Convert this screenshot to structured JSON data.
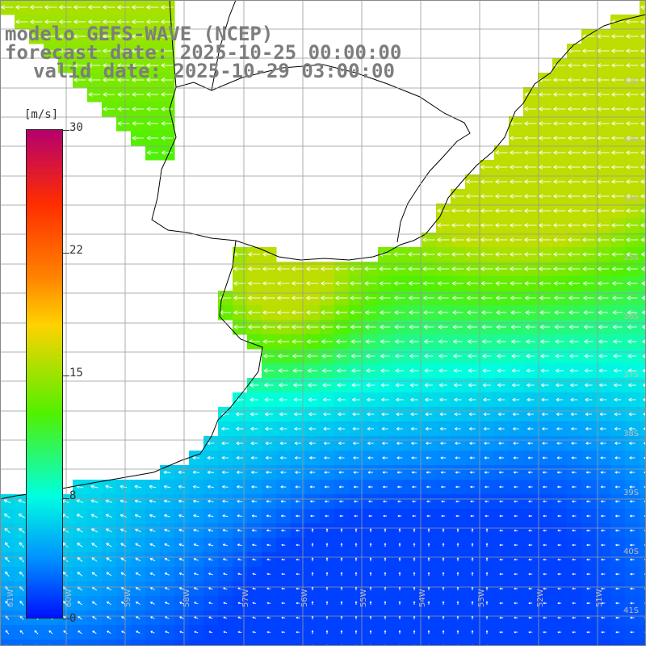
{
  "header": {
    "model": "modelo GEFS-WAVE (NCEP)",
    "forecast": "forecast date: 2025-10-25 00:00:00",
    "valid": "valid date: 2025-10-29 03:00:00"
  },
  "colorbar": {
    "unit": "[m/s]",
    "ticks": [
      "30",
      "22",
      "15",
      "8",
      "0"
    ],
    "tick_values": [
      30,
      22,
      15,
      8,
      0
    ],
    "colors": [
      "#0010ff",
      "#0090ff",
      "#00ffe0",
      "#52f000",
      "#ffd200",
      "#ff8200",
      "#ff2c00",
      "#b4006e"
    ]
  },
  "grid": {
    "lat_labels": [
      "32S",
      "33S",
      "34S",
      "35S",
      "36S",
      "37S",
      "38S",
      "39S",
      "40S",
      "41S"
    ],
    "lon_labels": [
      "61W",
      "60W",
      "59W",
      "58W",
      "57W",
      "56W",
      "55W",
      "54W",
      "53W",
      "52W",
      "51W"
    ]
  },
  "map_data": {
    "quantity": "wind speed",
    "extent": {
      "lon_min": -61.5,
      "lon_max": -50.5,
      "lat_min": -41.5,
      "lat_max": -31.5
    },
    "prevailing_direction": "from east / south-east",
    "regions": [
      {
        "area": "northeast coast (32S–34S, 53W–51W)",
        "speed": 12
      },
      {
        "area": "Rio de la Plata estuary (35S–36S, 58W–56W)",
        "speed": 12
      },
      {
        "area": "mid shelf (36S–37S)",
        "speed": 9
      },
      {
        "area": "south-central open ocean (39S–41S, 55W–53W)",
        "speed": 3
      },
      {
        "area": "southwest coast (39S–41S, 61W–59W)",
        "speed": 6
      }
    ]
  },
  "colors": {
    "title": "#7d7d7d",
    "land": "#ffffff",
    "coast": "#000000",
    "gridline": "#999999",
    "arrow": "#ffffff"
  }
}
